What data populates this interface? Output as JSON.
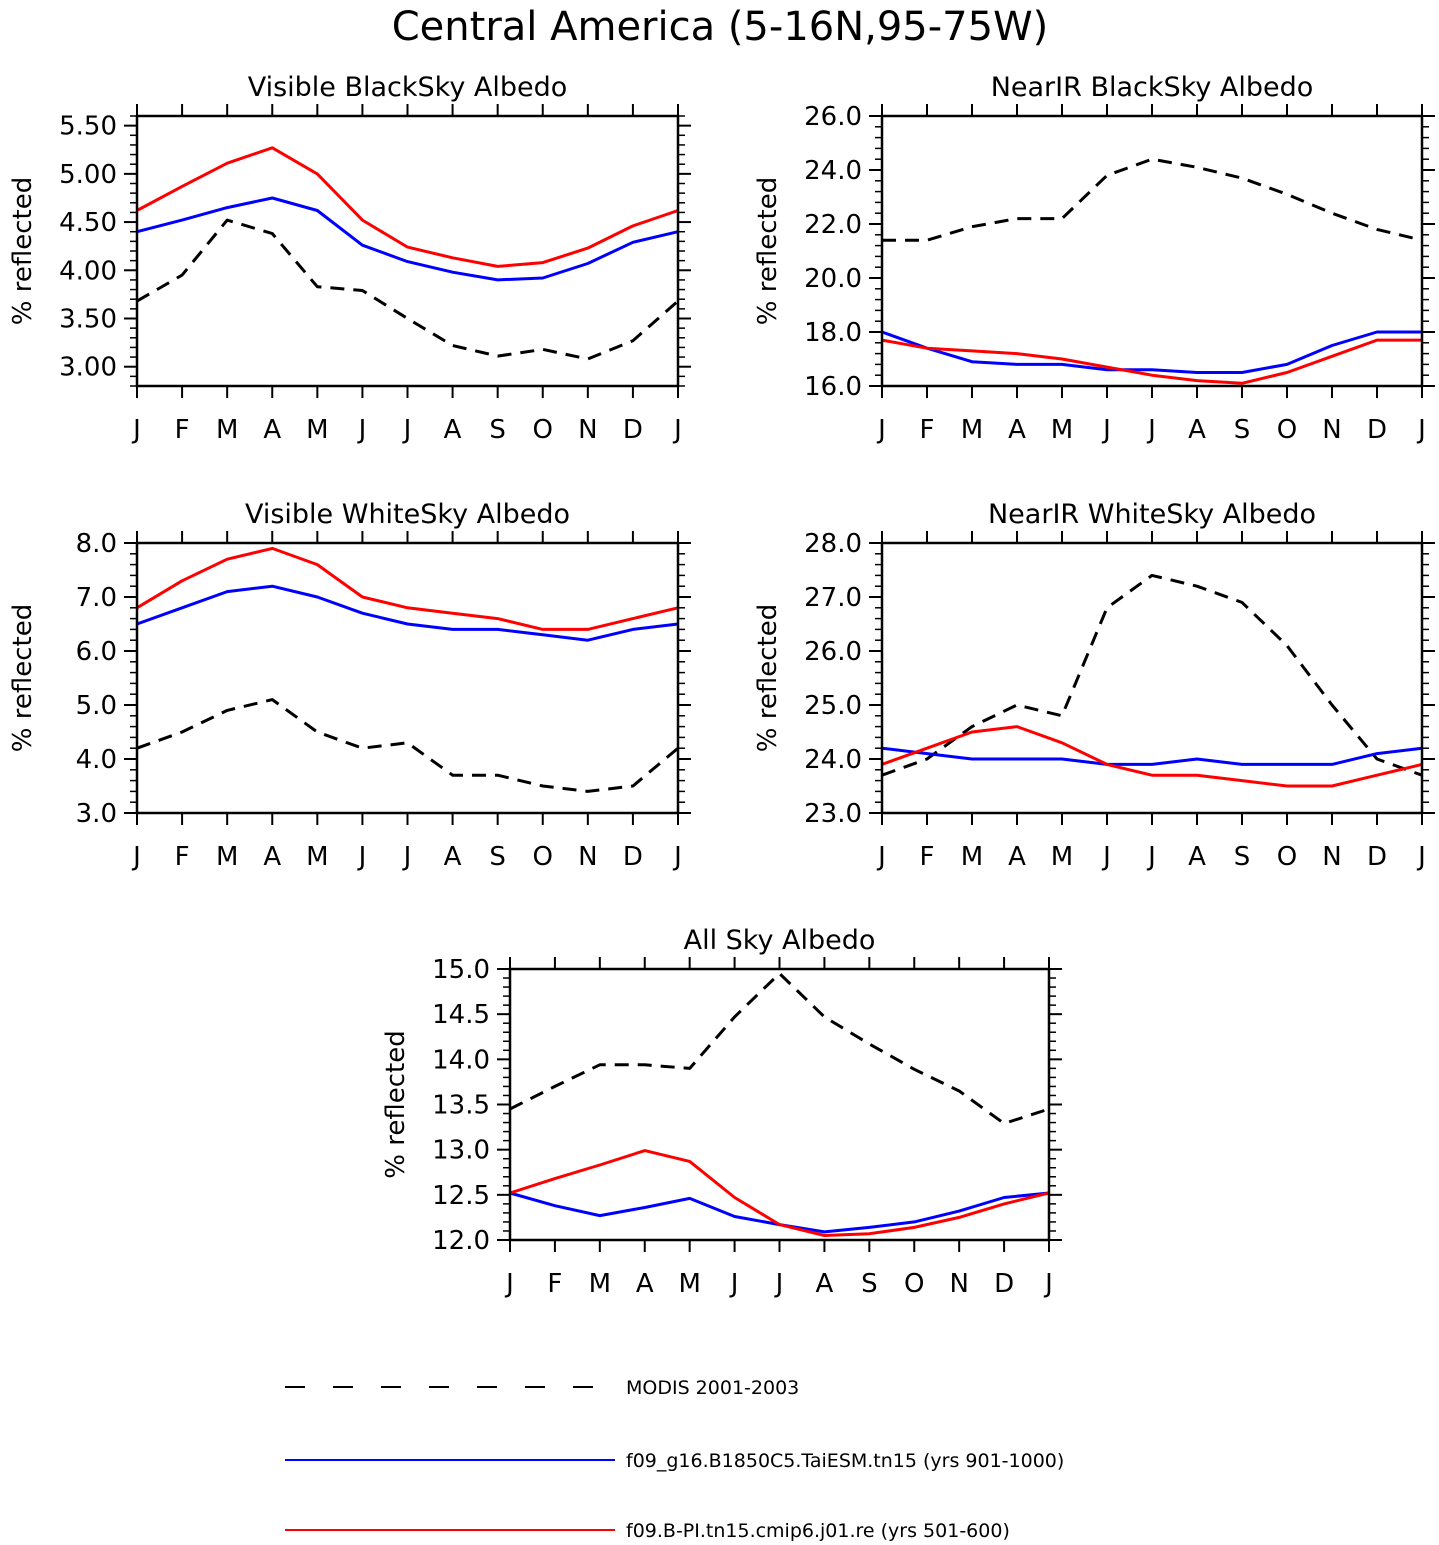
{
  "title": "Central America (5-16N,95-75W)",
  "months": [
    "J",
    "F",
    "M",
    "A",
    "M",
    "J",
    "J",
    "A",
    "S",
    "O",
    "N",
    "D",
    "J"
  ],
  "colors": {
    "modis": "#000000",
    "taiesm": "#0000ff",
    "cmip6": "#ff0000"
  },
  "legend": [
    {
      "key": "modis",
      "label": "MODIS 2001-2003",
      "style": "dashed"
    },
    {
      "key": "taiesm",
      "label": "f09_g16.B1850C5.TaiESM.tn15 (yrs 901-1000)",
      "style": "solid"
    },
    {
      "key": "cmip6",
      "label": "f09.B-PI.tn15.cmip6.j01.re (yrs 501-600)",
      "style": "solid"
    }
  ],
  "chart_data": [
    {
      "type": "line",
      "title": "Visible BlackSky Albedo",
      "ylabel": "% reflected",
      "ylim": [
        2.8,
        5.6
      ],
      "yticks": [
        3.0,
        3.5,
        4.0,
        4.5,
        5.0,
        5.5
      ],
      "ytick_labels": [
        "3.00",
        "3.50",
        "4.00",
        "4.50",
        "5.00",
        "5.50"
      ],
      "x": [
        "J",
        "F",
        "M",
        "A",
        "M",
        "J",
        "J",
        "A",
        "S",
        "O",
        "N",
        "D",
        "J"
      ],
      "series": [
        {
          "name": "MODIS 2001-2003",
          "key": "modis",
          "style": "dashed",
          "values": [
            3.68,
            3.95,
            4.52,
            4.38,
            3.83,
            3.79,
            3.5,
            3.22,
            3.11,
            3.18,
            3.08,
            3.27,
            3.68
          ]
        },
        {
          "name": "f09_g16.B1850C5.TaiESM.tn15 (yrs 901-1000)",
          "key": "taiesm",
          "style": "solid",
          "values": [
            4.4,
            4.52,
            4.65,
            4.75,
            4.62,
            4.26,
            4.09,
            3.98,
            3.9,
            3.92,
            4.07,
            4.29,
            4.4
          ]
        },
        {
          "name": "f09.B-PI.tn15.cmip6.j01.re (yrs 501-600)",
          "key": "cmip6",
          "style": "solid",
          "values": [
            4.62,
            4.87,
            5.11,
            5.27,
            5.0,
            4.52,
            4.24,
            4.13,
            4.04,
            4.08,
            4.23,
            4.46,
            4.62
          ]
        }
      ]
    },
    {
      "type": "line",
      "title": "NearIR BlackSky Albedo",
      "ylabel": "% reflected",
      "ylim": [
        16.0,
        26.0
      ],
      "yticks": [
        16,
        18,
        20,
        22,
        24,
        26
      ],
      "ytick_labels": [
        "16.0",
        "18.0",
        "20.0",
        "22.0",
        "24.0",
        "26.0"
      ],
      "x": [
        "J",
        "F",
        "M",
        "A",
        "M",
        "J",
        "J",
        "A",
        "S",
        "O",
        "N",
        "D",
        "J"
      ],
      "series": [
        {
          "name": "MODIS 2001-2003",
          "key": "modis",
          "style": "dashed",
          "values": [
            21.4,
            21.4,
            21.9,
            22.2,
            22.2,
            23.8,
            24.4,
            24.1,
            23.7,
            23.1,
            22.4,
            21.8,
            21.4
          ]
        },
        {
          "name": "f09_g16.B1850C5.TaiESM.tn15 (yrs 901-1000)",
          "key": "taiesm",
          "style": "solid",
          "values": [
            18.0,
            17.4,
            16.9,
            16.8,
            16.8,
            16.6,
            16.6,
            16.5,
            16.5,
            16.8,
            17.5,
            18.0,
            18.0
          ]
        },
        {
          "name": "f09.B-PI.tn15.cmip6.j01.re (yrs 501-600)",
          "key": "cmip6",
          "style": "solid",
          "values": [
            17.7,
            17.4,
            17.3,
            17.2,
            17.0,
            16.7,
            16.4,
            16.2,
            16.1,
            16.5,
            17.1,
            17.7,
            17.7
          ]
        }
      ]
    },
    {
      "type": "line",
      "title": "Visible WhiteSky Albedo",
      "ylabel": "% reflected",
      "ylim": [
        3.0,
        8.0
      ],
      "yticks": [
        3,
        4,
        5,
        6,
        7,
        8
      ],
      "ytick_labels": [
        "3.0",
        "4.0",
        "5.0",
        "6.0",
        "7.0",
        "8.0"
      ],
      "x": [
        "J",
        "F",
        "M",
        "A",
        "M",
        "J",
        "J",
        "A",
        "S",
        "O",
        "N",
        "D",
        "J"
      ],
      "series": [
        {
          "name": "MODIS 2001-2003",
          "key": "modis",
          "style": "dashed",
          "values": [
            4.2,
            4.5,
            4.9,
            5.1,
            4.5,
            4.2,
            4.3,
            3.7,
            3.7,
            3.5,
            3.4,
            3.5,
            4.2
          ]
        },
        {
          "name": "f09_g16.B1850C5.TaiESM.tn15 (yrs 901-1000)",
          "key": "taiesm",
          "style": "solid",
          "values": [
            6.5,
            6.8,
            7.1,
            7.2,
            7.0,
            6.7,
            6.5,
            6.4,
            6.4,
            6.3,
            6.2,
            6.4,
            6.5
          ]
        },
        {
          "name": "f09.B-PI.tn15.cmip6.j01.re (yrs 501-600)",
          "key": "cmip6",
          "style": "solid",
          "values": [
            6.8,
            7.3,
            7.7,
            7.9,
            7.6,
            7.0,
            6.8,
            6.7,
            6.6,
            6.4,
            6.4,
            6.6,
            6.8
          ]
        }
      ]
    },
    {
      "type": "line",
      "title": "NearIR WhiteSky Albedo",
      "ylabel": "% reflected",
      "ylim": [
        23.0,
        28.0
      ],
      "yticks": [
        23,
        24,
        25,
        26,
        27,
        28
      ],
      "ytick_labels": [
        "23.0",
        "24.0",
        "25.0",
        "26.0",
        "27.0",
        "28.0"
      ],
      "x": [
        "J",
        "F",
        "M",
        "A",
        "M",
        "J",
        "J",
        "A",
        "S",
        "O",
        "N",
        "D",
        "J"
      ],
      "series": [
        {
          "name": "MODIS 2001-2003",
          "key": "modis",
          "style": "dashed",
          "values": [
            23.7,
            24.0,
            24.6,
            25.0,
            24.8,
            26.8,
            27.4,
            27.2,
            26.9,
            26.1,
            25.0,
            24.0,
            23.7
          ]
        },
        {
          "name": "f09_g16.B1850C5.TaiESM.tn15 (yrs 901-1000)",
          "key": "taiesm",
          "style": "solid",
          "values": [
            24.2,
            24.1,
            24.0,
            24.0,
            24.0,
            23.9,
            23.9,
            24.0,
            23.9,
            23.9,
            23.9,
            24.1,
            24.2
          ]
        },
        {
          "name": "f09.B-PI.tn15.cmip6.j01.re (yrs 501-600)",
          "key": "cmip6",
          "style": "solid",
          "values": [
            23.9,
            24.2,
            24.5,
            24.6,
            24.3,
            23.9,
            23.7,
            23.7,
            23.6,
            23.5,
            23.5,
            23.7,
            23.9
          ]
        }
      ]
    },
    {
      "type": "line",
      "title": "All Sky Albedo",
      "ylabel": "% reflected",
      "ylim": [
        12.0,
        15.0
      ],
      "yticks": [
        12.0,
        12.5,
        13.0,
        13.5,
        14.0,
        14.5,
        15.0
      ],
      "ytick_labels": [
        "12.0",
        "12.5",
        "13.0",
        "13.5",
        "14.0",
        "14.5",
        "15.0"
      ],
      "x": [
        "J",
        "F",
        "M",
        "A",
        "M",
        "J",
        "J",
        "A",
        "S",
        "O",
        "N",
        "D",
        "J"
      ],
      "series": [
        {
          "name": "MODIS 2001-2003",
          "key": "modis",
          "style": "dashed",
          "values": [
            13.45,
            13.7,
            13.94,
            13.94,
            13.9,
            14.47,
            14.95,
            14.47,
            14.17,
            13.89,
            13.65,
            13.29,
            13.45
          ]
        },
        {
          "name": "f09_g16.B1850C5.TaiESM.tn15 (yrs 901-1000)",
          "key": "taiesm",
          "style": "solid",
          "values": [
            12.52,
            12.38,
            12.27,
            12.36,
            12.46,
            12.26,
            12.17,
            12.09,
            12.14,
            12.2,
            12.32,
            12.47,
            12.52
          ]
        },
        {
          "name": "f09.B-PI.tn15.cmip6.j01.re (yrs 501-600)",
          "key": "cmip6",
          "style": "solid",
          "values": [
            12.52,
            12.68,
            12.83,
            12.99,
            12.87,
            12.47,
            12.17,
            12.05,
            12.07,
            12.14,
            12.25,
            12.4,
            12.52
          ]
        }
      ]
    }
  ]
}
